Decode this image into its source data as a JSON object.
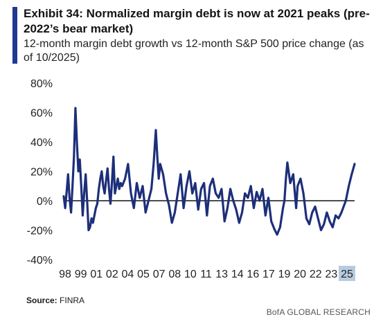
{
  "header": {
    "title": "Exhibit 34: Normalized margin debt is now at 2021 peaks (pre-2022’s bear market)",
    "subtitle": "12-month margin debt growth vs 12-month S&P 500 price change (as of 10/2025)"
  },
  "footer": {
    "source_label": "Source:",
    "source_value": "FINRA",
    "brand": "BofA GLOBAL RESEARCH"
  },
  "colors": {
    "line": "#1d2f7a",
    "accent": "#1f3a93",
    "zero_line": "#111111",
    "highlight": "#b7cbe0"
  },
  "chart_data": {
    "type": "line",
    "title": "",
    "xlabel": "",
    "ylabel": "",
    "y_ticks": [
      "80%",
      "60%",
      "40%",
      "20%",
      "0%",
      "-20%",
      "-40%"
    ],
    "ylim": [
      -40,
      80
    ],
    "xlim": [
      1998.0,
      2025.9
    ],
    "x_ticks": [
      {
        "label": "98",
        "x": 1998.0
      },
      {
        "label": "99",
        "x": 1999.0
      },
      {
        "label": "01",
        "x": 2000.0
      },
      {
        "label": "02",
        "x": 2001.0
      },
      {
        "label": "04",
        "x": 2002.0
      },
      {
        "label": "05",
        "x": 2003.0
      },
      {
        "label": "07",
        "x": 2004.0
      },
      {
        "label": "08",
        "x": 2005.0
      },
      {
        "label": "10",
        "x": 2006.0
      },
      {
        "label": "11",
        "x": 2007.0
      },
      {
        "label": "13",
        "x": 2008.0
      },
      {
        "label": "14",
        "x": 2009.0
      },
      {
        "label": "16",
        "x": 2010.0
      },
      {
        "label": "17",
        "x": 2011.0
      },
      {
        "label": "19",
        "x": 2012.0
      },
      {
        "label": "20",
        "x": 2013.0
      },
      {
        "label": "22",
        "x": 2014.0
      },
      {
        "label": "23",
        "x": 2015.0
      },
      {
        "label": "25",
        "x": 2016.0,
        "highlighted": true
      }
    ],
    "grid": false,
    "legend": "none",
    "series": [
      {
        "values_x": [
          1998.0,
          1998.1,
          1998.2,
          1998.3,
          1998.4,
          1998.5,
          1998.6,
          1998.7,
          1998.8,
          1998.9,
          1999.0,
          1999.1,
          1999.2,
          1999.3,
          1999.4,
          1999.5,
          1999.6,
          1999.7,
          1999.8,
          1999.9,
          2000.0,
          2000.1,
          2000.2,
          2000.3,
          2000.4,
          2000.5,
          2000.6,
          2000.7,
          2000.8,
          2000.9,
          2001.0,
          2001.1,
          2001.2,
          2001.3,
          2001.4,
          2001.5,
          2001.6,
          2001.7,
          2001.8,
          2001.9,
          2002.0,
          2002.2,
          2002.4,
          2002.6,
          2002.8,
          2003.0,
          2003.2,
          2003.4,
          2003.6,
          2003.8,
          2004.0,
          2004.15,
          2004.3,
          2004.4,
          2004.5,
          2004.6,
          2004.8,
          2005.0,
          2005.2,
          2005.4,
          2005.6,
          2005.8,
          2006.0,
          2006.2,
          2006.4,
          2006.6,
          2006.8,
          2007.0,
          2007.2,
          2007.4,
          2007.6,
          2007.8,
          2008.0,
          2008.2,
          2008.4,
          2008.6,
          2008.8,
          2009.0,
          2009.2,
          2009.4,
          2009.6,
          2009.8,
          2010.0,
          2010.2,
          2010.4,
          2010.6,
          2010.8,
          2011.0,
          2011.2,
          2011.4,
          2011.6,
          2011.8,
          2012.0,
          2012.2,
          2012.4,
          2012.6,
          2012.8,
          2013.0,
          2013.1,
          2013.2,
          2013.3,
          2013.5,
          2013.7,
          2013.9,
          2014.0,
          2014.2,
          2014.4,
          2014.6,
          2014.8,
          2015.0,
          2015.2,
          2015.4,
          2015.6,
          2015.8,
          2016.0,
          2016.2,
          2016.4,
          2016.6,
          2016.8,
          2017.0,
          2017.3,
          2017.5,
          2017.7,
          2017.9
        ],
        "values": [
          3,
          -5,
          6,
          18,
          2,
          -8,
          10,
          30,
          63,
          40,
          20,
          28,
          10,
          -10,
          5,
          18,
          0,
          -20,
          -18,
          -12,
          -15,
          -10,
          -5,
          -2,
          8,
          15,
          20,
          10,
          5,
          14,
          22,
          8,
          -2,
          12,
          30,
          5,
          10,
          15,
          8,
          12,
          10,
          15,
          25,
          5,
          -5,
          12,
          2,
          10,
          -8,
          0,
          8,
          25,
          48,
          30,
          15,
          25,
          18,
          5,
          -3,
          -15,
          -8,
          5,
          18,
          -5,
          10,
          20,
          5,
          12,
          -6,
          8,
          12,
          -10,
          10,
          15,
          5,
          2,
          8,
          -14,
          -5,
          8,
          0,
          -6,
          -15,
          -8,
          5,
          2,
          10,
          -5,
          6,
          0,
          8,
          -10,
          2,
          -14,
          -19,
          -23,
          -18,
          -5,
          0,
          15,
          26,
          12,
          18,
          -5,
          10,
          15,
          5,
          -12,
          -16,
          -8,
          -4,
          -12,
          -20,
          -16,
          -8,
          -14,
          -18,
          -10,
          -12,
          -8,
          0,
          10,
          18,
          25
        ]
      }
    ]
  }
}
